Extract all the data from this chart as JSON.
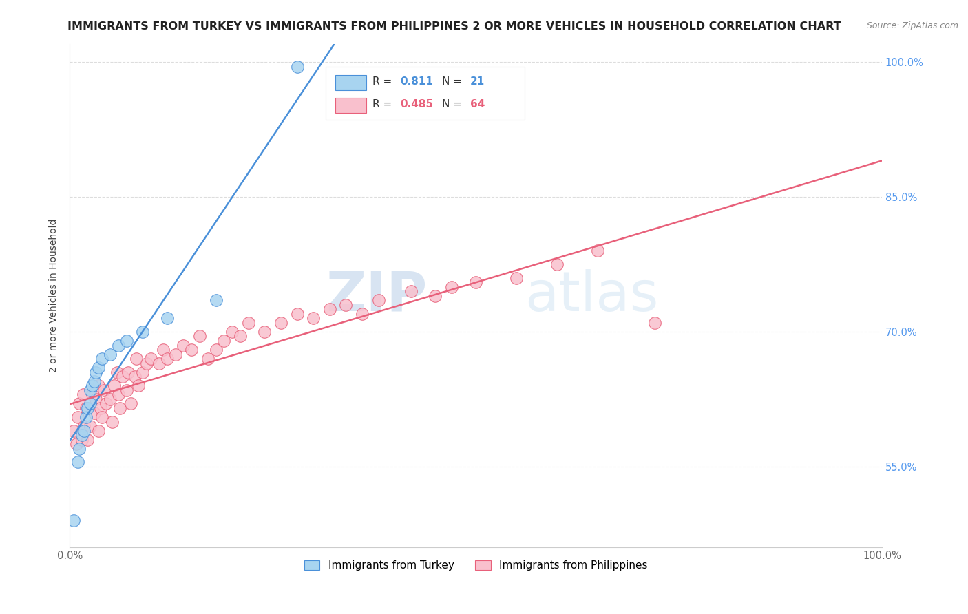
{
  "title": "IMMIGRANTS FROM TURKEY VS IMMIGRANTS FROM PHILIPPINES 2 OR MORE VEHICLES IN HOUSEHOLD CORRELATION CHART",
  "source": "Source: ZipAtlas.com",
  "ylabel": "2 or more Vehicles in Household",
  "xlim": [
    0.0,
    1.0
  ],
  "ylim": [
    0.46,
    1.02
  ],
  "x_tick_labels": [
    "0.0%",
    "100.0%"
  ],
  "y_tick_labels": [
    "55.0%",
    "70.0%",
    "85.0%",
    "100.0%"
  ],
  "y_tick_positions": [
    0.55,
    0.7,
    0.85,
    1.0
  ],
  "turkey_R": 0.811,
  "turkey_N": 21,
  "philippines_R": 0.485,
  "philippines_N": 64,
  "turkey_color": "#a8d4f0",
  "philippines_color": "#f9c0cd",
  "turkey_line_color": "#4a90d9",
  "philippines_line_color": "#e8607a",
  "background_color": "#ffffff",
  "grid_color": "#dddddd",
  "turkey_x": [
    0.005,
    0.01,
    0.012,
    0.015,
    0.018,
    0.02,
    0.022,
    0.025,
    0.025,
    0.028,
    0.03,
    0.032,
    0.035,
    0.04,
    0.05,
    0.06,
    0.07,
    0.09,
    0.12,
    0.18,
    0.28
  ],
  "turkey_y": [
    0.49,
    0.555,
    0.57,
    0.585,
    0.59,
    0.605,
    0.615,
    0.62,
    0.635,
    0.64,
    0.645,
    0.655,
    0.66,
    0.67,
    0.675,
    0.685,
    0.69,
    0.7,
    0.715,
    0.735,
    0.995
  ],
  "philippines_x": [
    0.005,
    0.008,
    0.01,
    0.012,
    0.015,
    0.017,
    0.018,
    0.02,
    0.022,
    0.025,
    0.028,
    0.03,
    0.032,
    0.035,
    0.035,
    0.038,
    0.04,
    0.042,
    0.045,
    0.05,
    0.052,
    0.055,
    0.058,
    0.06,
    0.062,
    0.065,
    0.07,
    0.072,
    0.075,
    0.08,
    0.082,
    0.085,
    0.09,
    0.095,
    0.1,
    0.11,
    0.115,
    0.12,
    0.13,
    0.14,
    0.15,
    0.16,
    0.17,
    0.18,
    0.19,
    0.2,
    0.21,
    0.22,
    0.24,
    0.26,
    0.28,
    0.3,
    0.32,
    0.34,
    0.36,
    0.38,
    0.42,
    0.45,
    0.47,
    0.5,
    0.55,
    0.6,
    0.65,
    0.72
  ],
  "philippines_y": [
    0.59,
    0.575,
    0.605,
    0.62,
    0.58,
    0.63,
    0.595,
    0.615,
    0.58,
    0.595,
    0.63,
    0.61,
    0.625,
    0.59,
    0.64,
    0.615,
    0.605,
    0.635,
    0.62,
    0.625,
    0.6,
    0.64,
    0.655,
    0.63,
    0.615,
    0.65,
    0.635,
    0.655,
    0.62,
    0.65,
    0.67,
    0.64,
    0.655,
    0.665,
    0.67,
    0.665,
    0.68,
    0.67,
    0.675,
    0.685,
    0.68,
    0.695,
    0.67,
    0.68,
    0.69,
    0.7,
    0.695,
    0.71,
    0.7,
    0.71,
    0.72,
    0.715,
    0.725,
    0.73,
    0.72,
    0.735,
    0.745,
    0.74,
    0.75,
    0.755,
    0.76,
    0.775,
    0.79,
    0.71
  ],
  "watermark_zip": "ZIP",
  "watermark_atlas": "atlas",
  "title_fontsize": 11.5,
  "axis_fontsize": 10,
  "tick_fontsize": 10.5
}
